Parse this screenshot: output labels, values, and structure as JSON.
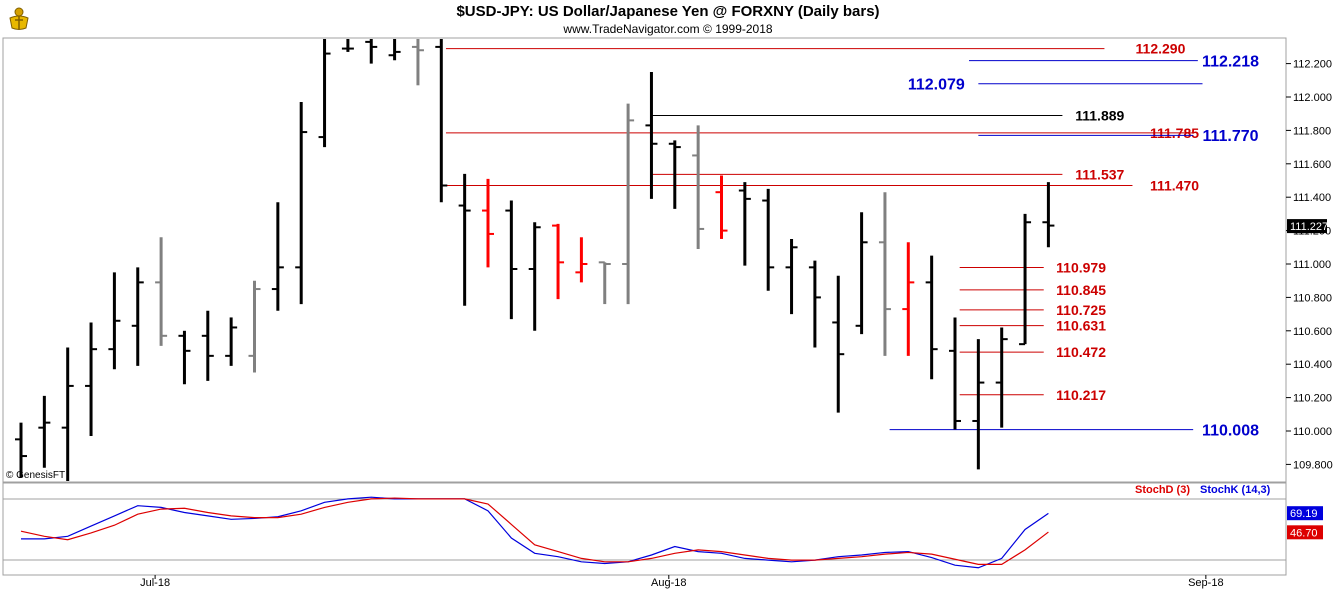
{
  "header": {
    "title": "$USD-JPY:  US Dollar/Japanese Yen @ FORXNY  (Daily bars)",
    "subtitle": "www.TradeNavigator.com © 1999-2018",
    "watermark": "© GenesisFT"
  },
  "colors": {
    "bull": "#000000",
    "bear": "#ff0000",
    "neutral": "#808080",
    "red_line": "#cc0000",
    "blue_line": "#0000cc",
    "black_line": "#000000",
    "stoch_d": "#dd0000",
    "stoch_k": "#0000dd"
  },
  "chart_data": [
    {
      "type": "ohlc",
      "ylim": [
        109.65,
        112.43
      ],
      "y_ticks": [
        "109.800",
        "110.000",
        "110.200",
        "110.400",
        "110.600",
        "110.800",
        "111.000",
        "111.200",
        "111.400",
        "111.600",
        "111.800",
        "112.000",
        "112.200"
      ],
      "x_labels": [
        {
          "label": "Jul-18",
          "bar": 6
        },
        {
          "label": "Aug-18",
          "bar": 28
        },
        {
          "label": "Sep-18",
          "bar": 51
        }
      ],
      "last_price_label": "111.227",
      "bars": [
        {
          "o": 109.95,
          "h": 110.05,
          "l": 109.72,
          "c": 109.85,
          "col": "bull"
        },
        {
          "o": 110.02,
          "h": 110.21,
          "l": 109.78,
          "c": 110.05,
          "col": "bull"
        },
        {
          "o": 110.02,
          "h": 110.5,
          "l": 109.68,
          "c": 110.27,
          "col": "bull"
        },
        {
          "o": 110.27,
          "h": 110.65,
          "l": 109.97,
          "c": 110.49,
          "col": "bull"
        },
        {
          "o": 110.49,
          "h": 110.95,
          "l": 110.37,
          "c": 110.66,
          "col": "bull"
        },
        {
          "o": 110.63,
          "h": 110.98,
          "l": 110.39,
          "c": 110.89,
          "col": "bull"
        },
        {
          "o": 110.89,
          "h": 111.16,
          "l": 110.51,
          "c": 110.57,
          "col": "neutral"
        },
        {
          "o": 110.57,
          "h": 110.6,
          "l": 110.28,
          "c": 110.48,
          "col": "bull"
        },
        {
          "o": 110.57,
          "h": 110.72,
          "l": 110.3,
          "c": 110.45,
          "col": "bull"
        },
        {
          "o": 110.45,
          "h": 110.68,
          "l": 110.39,
          "c": 110.62,
          "col": "bull"
        },
        {
          "o": 110.45,
          "h": 110.9,
          "l": 110.35,
          "c": 110.85,
          "col": "neutral"
        },
        {
          "o": 110.85,
          "h": 111.37,
          "l": 110.72,
          "c": 110.98,
          "col": "bull"
        },
        {
          "o": 110.98,
          "h": 111.97,
          "l": 110.76,
          "c": 111.79,
          "col": "bull"
        },
        {
          "o": 111.76,
          "h": 112.43,
          "l": 111.7,
          "c": 112.26,
          "col": "bull"
        },
        {
          "o": 112.29,
          "h": 112.43,
          "l": 112.27,
          "c": 112.29,
          "col": "bull"
        },
        {
          "o": 112.33,
          "h": 112.43,
          "l": 112.2,
          "c": 112.3,
          "col": "bull"
        },
        {
          "o": 112.25,
          "h": 112.43,
          "l": 112.22,
          "c": 112.27,
          "col": "bull"
        },
        {
          "o": 112.3,
          "h": 112.43,
          "l": 112.07,
          "c": 112.28,
          "col": "neutral"
        },
        {
          "o": 112.3,
          "h": 112.43,
          "l": 111.37,
          "c": 111.47,
          "col": "bull"
        },
        {
          "o": 111.35,
          "h": 111.54,
          "l": 110.75,
          "c": 111.32,
          "col": "bull"
        },
        {
          "o": 111.32,
          "h": 111.51,
          "l": 110.98,
          "c": 111.18,
          "col": "bear"
        },
        {
          "o": 111.32,
          "h": 111.38,
          "l": 110.67,
          "c": 110.97,
          "col": "bull"
        },
        {
          "o": 110.97,
          "h": 111.25,
          "l": 110.6,
          "c": 111.22,
          "col": "bull"
        },
        {
          "o": 111.23,
          "h": 111.24,
          "l": 110.79,
          "c": 111.01,
          "col": "bear"
        },
        {
          "o": 110.95,
          "h": 111.16,
          "l": 110.89,
          "c": 111.0,
          "col": "bear"
        },
        {
          "o": 111.01,
          "h": 111.01,
          "l": 110.76,
          "c": 111.0,
          "col": "neutral"
        },
        {
          "o": 111.0,
          "h": 111.96,
          "l": 110.76,
          "c": 111.86,
          "col": "neutral"
        },
        {
          "o": 111.83,
          "h": 112.15,
          "l": 111.39,
          "c": 111.72,
          "col": "bull"
        },
        {
          "o": 111.72,
          "h": 111.74,
          "l": 111.33,
          "c": 111.7,
          "col": "bull"
        },
        {
          "o": 111.65,
          "h": 111.83,
          "l": 111.09,
          "c": 111.21,
          "col": "neutral"
        },
        {
          "o": 111.43,
          "h": 111.53,
          "l": 111.15,
          "c": 111.2,
          "col": "bear"
        },
        {
          "o": 111.44,
          "h": 111.49,
          "l": 110.99,
          "c": 111.39,
          "col": "bull"
        },
        {
          "o": 111.38,
          "h": 111.45,
          "l": 110.84,
          "c": 110.98,
          "col": "bull"
        },
        {
          "o": 110.98,
          "h": 111.15,
          "l": 110.7,
          "c": 111.1,
          "col": "bull"
        },
        {
          "o": 110.98,
          "h": 111.02,
          "l": 110.5,
          "c": 110.8,
          "col": "bull"
        },
        {
          "o": 110.65,
          "h": 110.93,
          "l": 110.11,
          "c": 110.46,
          "col": "bull"
        },
        {
          "o": 110.63,
          "h": 111.31,
          "l": 110.58,
          "c": 111.13,
          "col": "bull"
        },
        {
          "o": 111.13,
          "h": 111.43,
          "l": 110.45,
          "c": 110.73,
          "col": "neutral"
        },
        {
          "o": 110.73,
          "h": 111.13,
          "l": 110.45,
          "c": 110.89,
          "col": "bear"
        },
        {
          "o": 110.89,
          "h": 111.05,
          "l": 110.31,
          "c": 110.49,
          "col": "bull"
        },
        {
          "o": 110.48,
          "h": 110.68,
          "l": 110.01,
          "c": 110.06,
          "col": "bull"
        },
        {
          "o": 110.06,
          "h": 110.55,
          "l": 109.77,
          "c": 110.29,
          "col": "bull"
        },
        {
          "o": 110.29,
          "h": 110.62,
          "l": 110.02,
          "c": 110.55,
          "col": "bull"
        },
        {
          "o": 110.52,
          "h": 111.3,
          "l": 110.52,
          "c": 111.25,
          "col": "bull"
        },
        {
          "o": 111.25,
          "h": 111.49,
          "l": 111.1,
          "c": 111.23,
          "col": "bull"
        }
      ],
      "levels": [
        {
          "value": 112.29,
          "label": "112.290",
          "color": "red_line",
          "x1": 18.2,
          "x2": 46.4,
          "text_bar": 48.8,
          "align": "middle",
          "fill": "red_line"
        },
        {
          "value": 112.218,
          "label": "112.218",
          "color": "blue_line",
          "x1": 40.6,
          "x2": 50.4,
          "text_bar": 51.8,
          "align": "middle",
          "fill": "blue_line",
          "big": true
        },
        {
          "value": 112.079,
          "label": "112.079",
          "color": "blue_line",
          "x1": 41.0,
          "x2": 50.6,
          "text_bar": 39.2,
          "align": "middle",
          "fill": "blue_line",
          "big": true
        },
        {
          "value": 111.889,
          "label": "111.889",
          "color": "black_line",
          "x1": 27.0,
          "x2": 44.6,
          "text_bar": 46.2,
          "align": "middle",
          "fill": "black_line"
        },
        {
          "value": 111.785,
          "label": "111.785",
          "color": "red_line",
          "x1": 18.2,
          "x2": 50.2,
          "text_bar": 49.4,
          "align": "middle",
          "fill": "red_line"
        },
        {
          "value": 111.77,
          "label": "111.770",
          "color": "blue_line",
          "x1": 41.0,
          "x2": 50.2,
          "text_bar": 51.8,
          "align": "middle",
          "fill": "blue_line",
          "big": true
        },
        {
          "value": 111.537,
          "label": "111.537",
          "color": "red_line",
          "x1": 27.0,
          "x2": 44.6,
          "text_bar": 46.2,
          "align": "middle",
          "fill": "red_line"
        },
        {
          "value": 111.47,
          "label": "111.470",
          "color": "red_line",
          "x1": 18.2,
          "x2": 47.6,
          "text_bar": 49.4,
          "align": "middle",
          "fill": "red_line"
        },
        {
          "value": 110.979,
          "label": "110.979",
          "color": "red_line",
          "x1": 40.2,
          "x2": 43.8,
          "text_bar": 45.4,
          "align": "middle",
          "fill": "red_line"
        },
        {
          "value": 110.845,
          "label": "110.845",
          "color": "red_line",
          "x1": 40.2,
          "x2": 43.8,
          "text_bar": 45.4,
          "align": "middle",
          "fill": "red_line"
        },
        {
          "value": 110.725,
          "label": "110.725",
          "color": "red_line",
          "x1": 40.2,
          "x2": 43.8,
          "text_bar": 45.4,
          "align": "middle",
          "fill": "red_line"
        },
        {
          "value": 110.631,
          "label": "110.631",
          "color": "red_line",
          "x1": 40.2,
          "x2": 43.8,
          "text_bar": 45.4,
          "align": "middle",
          "fill": "red_line"
        },
        {
          "value": 110.472,
          "label": "110.472",
          "color": "red_line",
          "x1": 40.2,
          "x2": 43.8,
          "text_bar": 45.4,
          "align": "middle",
          "fill": "red_line"
        },
        {
          "value": 110.217,
          "label": "110.217",
          "color": "red_line",
          "x1": 40.2,
          "x2": 43.8,
          "text_bar": 45.4,
          "align": "middle",
          "fill": "red_line"
        },
        {
          "value": 110.008,
          "label": "110.008",
          "color": "blue_line",
          "x1": 37.2,
          "x2": 50.2,
          "text_bar": 51.8,
          "align": "middle",
          "fill": "blue_line",
          "big": true
        }
      ]
    },
    {
      "type": "line",
      "title": "",
      "legend": [
        {
          "name": "StochD (3)",
          "color": "stoch_d"
        },
        {
          "name": "StochK (14,3)",
          "color": "stoch_k"
        }
      ],
      "ylim": [
        0,
        100
      ],
      "last_values": [
        {
          "label": "69.19",
          "value": 69.19,
          "color": "stoch_k"
        },
        {
          "label": "46.70",
          "value": 46.7,
          "color": "stoch_d"
        }
      ],
      "series": [
        {
          "name": "StochK (14,3)",
          "color": "stoch_k",
          "values": [
            39,
            39,
            42,
            54,
            66,
            78,
            76,
            70,
            66,
            62,
            63,
            65,
            72,
            82,
            86,
            88,
            86,
            86,
            86,
            86,
            72,
            40,
            22,
            18,
            12,
            10,
            12,
            20,
            30,
            24,
            22,
            16,
            14,
            12,
            14,
            18,
            20,
            23,
            24,
            17,
            8,
            5,
            16,
            50,
            69
          ]
        },
        {
          "name": "StochD (3)",
          "color": "stoch_d",
          "values": [
            48,
            42,
            38,
            46,
            55,
            68,
            74,
            75,
            70,
            66,
            64,
            64,
            68,
            76,
            82,
            86,
            87,
            86,
            86,
            86,
            80,
            56,
            32,
            24,
            16,
            12,
            12,
            16,
            22,
            26,
            24,
            20,
            16,
            14,
            14,
            16,
            18,
            21,
            23,
            21,
            15,
            9,
            9,
            26,
            47
          ]
        }
      ]
    }
  ]
}
